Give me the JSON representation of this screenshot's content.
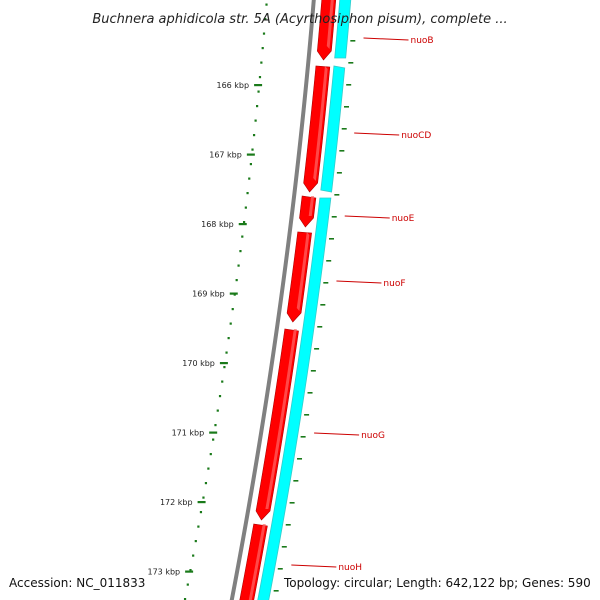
{
  "map": {
    "title": "Buchnera aphidicola str. 5A (Acyrthosiphon pisum), complete ...",
    "accession": "Accession: NC_011833",
    "summary": "Topology: circular; Length: 642,122 bp; Genes: 590",
    "ticks": [
      {
        "kb": 166,
        "label": "166 kbp"
      },
      {
        "kb": 167,
        "label": "167 kbp"
      },
      {
        "kb": 168,
        "label": "168 kbp"
      },
      {
        "kb": 169,
        "label": "169 kbp"
      },
      {
        "kb": 170,
        "label": "170 kbp"
      },
      {
        "kb": 171,
        "label": "171 kbp"
      },
      {
        "kb": 172,
        "label": "172 kbp"
      },
      {
        "kb": 173,
        "label": "173 kbp"
      }
    ],
    "genes": [
      {
        "name": "nuoB"
      },
      {
        "name": "nuoCD"
      },
      {
        "name": "nuoE"
      },
      {
        "name": "nuoF"
      },
      {
        "name": "nuoG"
      },
      {
        "name": "nuoH"
      }
    ],
    "colors": {
      "gene": "#ff0000",
      "gene_highlight": "#ff6666",
      "track": "#00ffff",
      "track_edge": "#33cccc",
      "backbone": "#808080",
      "tick": "#1a7a1a",
      "label": "#cc0000"
    }
  }
}
